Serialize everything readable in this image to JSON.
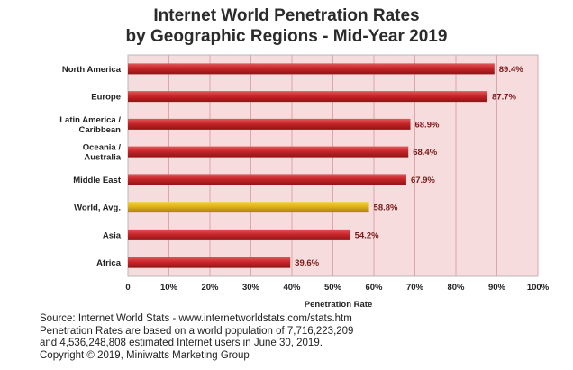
{
  "chart_data": {
    "type": "bar",
    "orientation": "horizontal",
    "title_lines": [
      "Internet World Penetration Rates",
      "by Geographic Regions -  Mid-Year 2019"
    ],
    "xlabel": "Penetration Rate",
    "ylabel": "",
    "xlim": [
      0,
      100
    ],
    "ticks": [
      "0",
      "10%",
      "20%",
      "30%",
      "40%",
      "50%",
      "60%",
      "70%",
      "80%",
      "90%",
      "100%"
    ],
    "grid": true,
    "categories": [
      [
        "North America"
      ],
      [
        "Europe"
      ],
      [
        "Latin America /",
        "Caribbean"
      ],
      [
        "Oceania /",
        "Australia"
      ],
      [
        "Middle East"
      ],
      [
        "World, Avg."
      ],
      [
        "Asia"
      ],
      [
        "Africa"
      ]
    ],
    "values": [
      89.4,
      87.7,
      68.9,
      68.4,
      67.9,
      58.8,
      54.2,
      39.6
    ],
    "value_labels": [
      "89.4%",
      "87.7%",
      "68.9%",
      "68.4%",
      "67.9%",
      "58.8%",
      "54.2%",
      "39.6%"
    ],
    "highlight_index": 5,
    "colors": {
      "bar": "#c8262a",
      "bar_highlight": "#e0b21c",
      "plot_background": "#f6dcdc",
      "grid": "#d9a9a9",
      "value_label": "#7a1a1a"
    }
  },
  "source_lines": [
    "Source: Internet World Stats - www.internetworldstats.com/stats.htm",
    "Penetration Rates are based on a world population of 7,716,223,209",
    "and 4,536,248,808 estimated Internet users in June 30, 2019.",
    "Copyright © 2019, Miniwatts Marketing Group"
  ]
}
